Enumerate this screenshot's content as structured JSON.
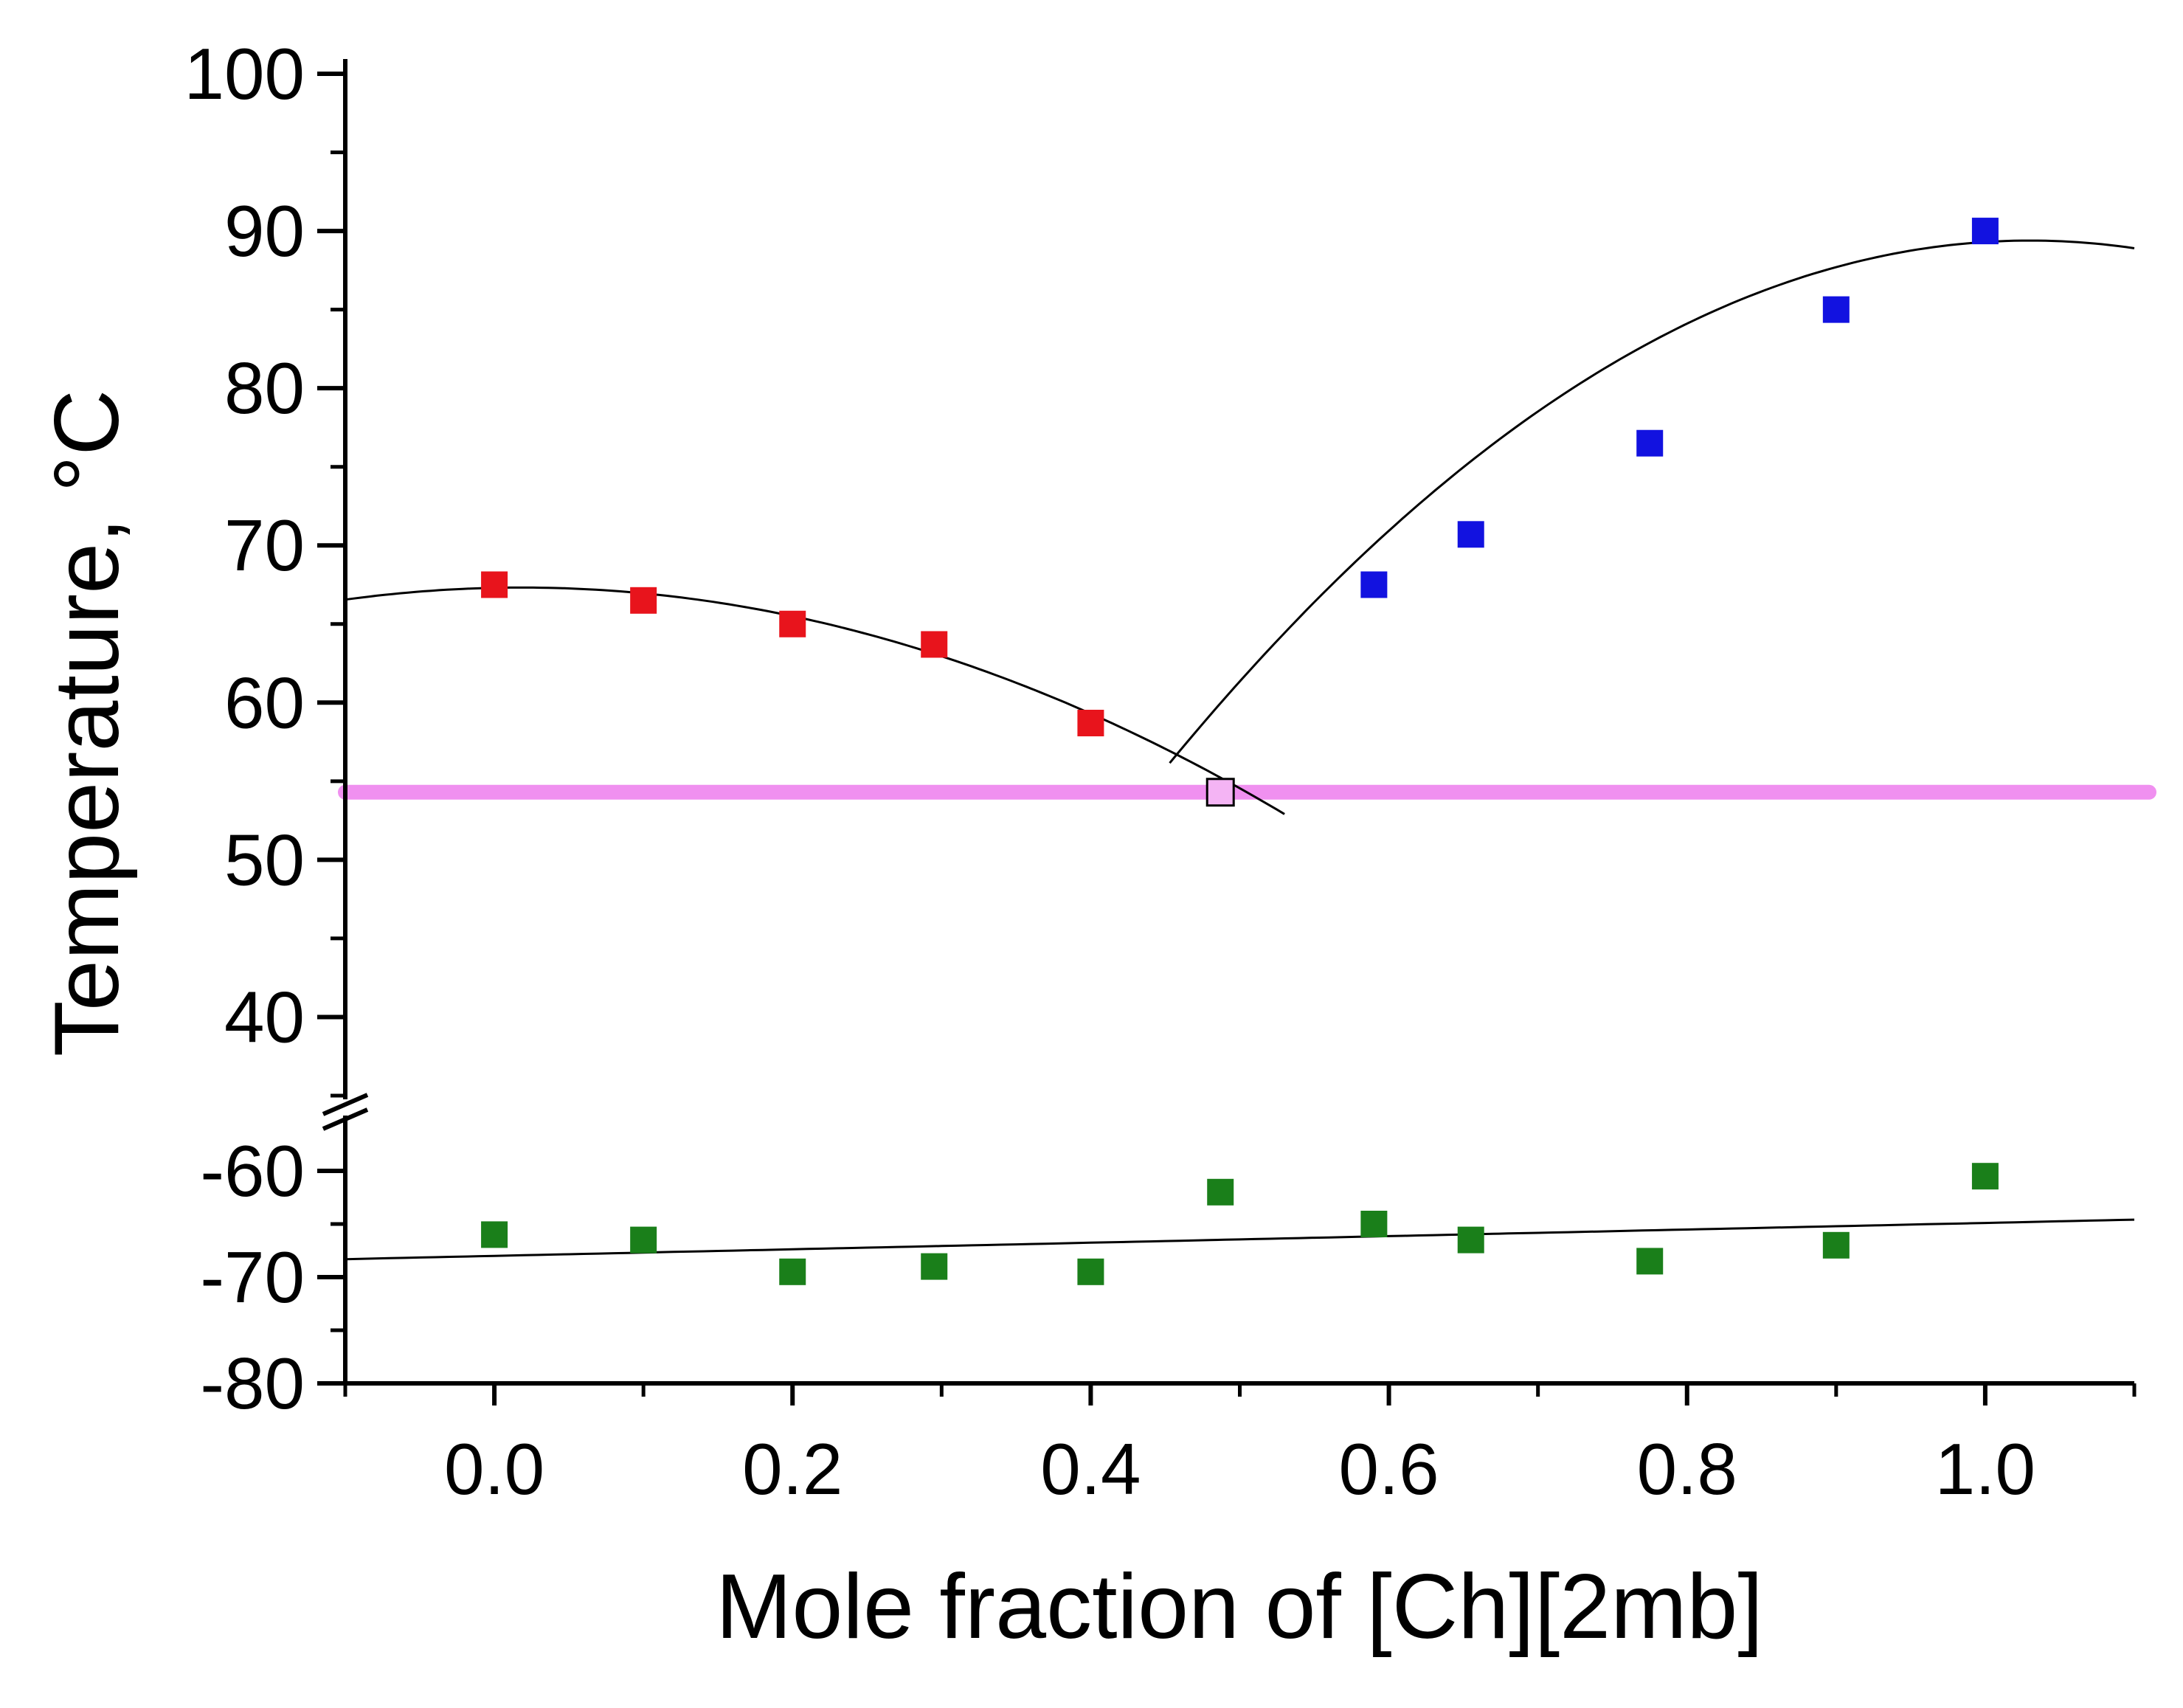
{
  "chart_data": {
    "type": "scatter",
    "xlabel": "Mole fraction of [Ch][2mb]",
    "ylabel": "Temperature, °C",
    "xlim": [
      -0.1,
      1.1
    ],
    "x_ticks": [
      "0.0",
      "0.2",
      "0.4",
      "0.6",
      "0.8",
      "1.0"
    ],
    "y_axis_break": true,
    "upper_panel": {
      "ylim": [
        35,
        100
      ],
      "y_ticks": [
        "40",
        "50",
        "60",
        "70",
        "80",
        "90",
        "100"
      ]
    },
    "lower_panel": {
      "ylim": [
        -80,
        -55
      ],
      "y_ticks": [
        "-60",
        "-70",
        "-80"
      ]
    },
    "colors": {
      "red": "#e8141c",
      "blue": "#1212e0",
      "green": "#1a7f1a",
      "pink": "#f090f0",
      "eutectic_marker": "#f4b4f4",
      "fit_line": "#000000"
    },
    "series": [
      {
        "name": "red",
        "panel": "upper",
        "x": [
          0.0,
          0.1,
          0.2,
          0.295,
          0.4
        ],
        "y": [
          67.5,
          66.5,
          65.0,
          63.7,
          58.7
        ]
      },
      {
        "name": "blue",
        "panel": "upper",
        "x": [
          0.59,
          0.655,
          0.775,
          0.9,
          1.0
        ],
        "y": [
          67.5,
          70.7,
          76.5,
          85.0,
          90.0
        ]
      },
      {
        "name": "eutectic",
        "panel": "upper",
        "x": [
          0.487
        ],
        "y": [
          54.3
        ]
      },
      {
        "name": "green",
        "panel": "lower",
        "x": [
          0.0,
          0.1,
          0.2,
          0.295,
          0.4,
          0.487,
          0.59,
          0.655,
          0.775,
          0.9,
          1.0
        ],
        "y": [
          -66.0,
          -66.5,
          -69.5,
          -69.0,
          -69.5,
          -62.0,
          -65.0,
          -66.5,
          -68.5,
          -67.0,
          -60.5
        ]
      }
    ],
    "eutectic_line": {
      "y": 54.3,
      "x_range": [
        -0.1,
        1.1
      ]
    },
    "fits": [
      {
        "name": "red-fit",
        "panel": "upper",
        "type": "quadratic",
        "coefficients": [
          67.3,
          2.0,
          -55.0
        ],
        "x_range": [
          -0.1,
          0.53
        ]
      },
      {
        "name": "blue-fit",
        "panel": "upper",
        "type": "quadratic",
        "coefficients": [
          -16.5,
          205.6,
          -99.8
        ],
        "x_range": [
          0.453,
          1.1
        ]
      },
      {
        "name": "green-fit",
        "panel": "lower",
        "type": "linear",
        "coefficients": [
          -68.0,
          3.1
        ],
        "x_range": [
          -0.1,
          1.1
        ]
      }
    ]
  }
}
